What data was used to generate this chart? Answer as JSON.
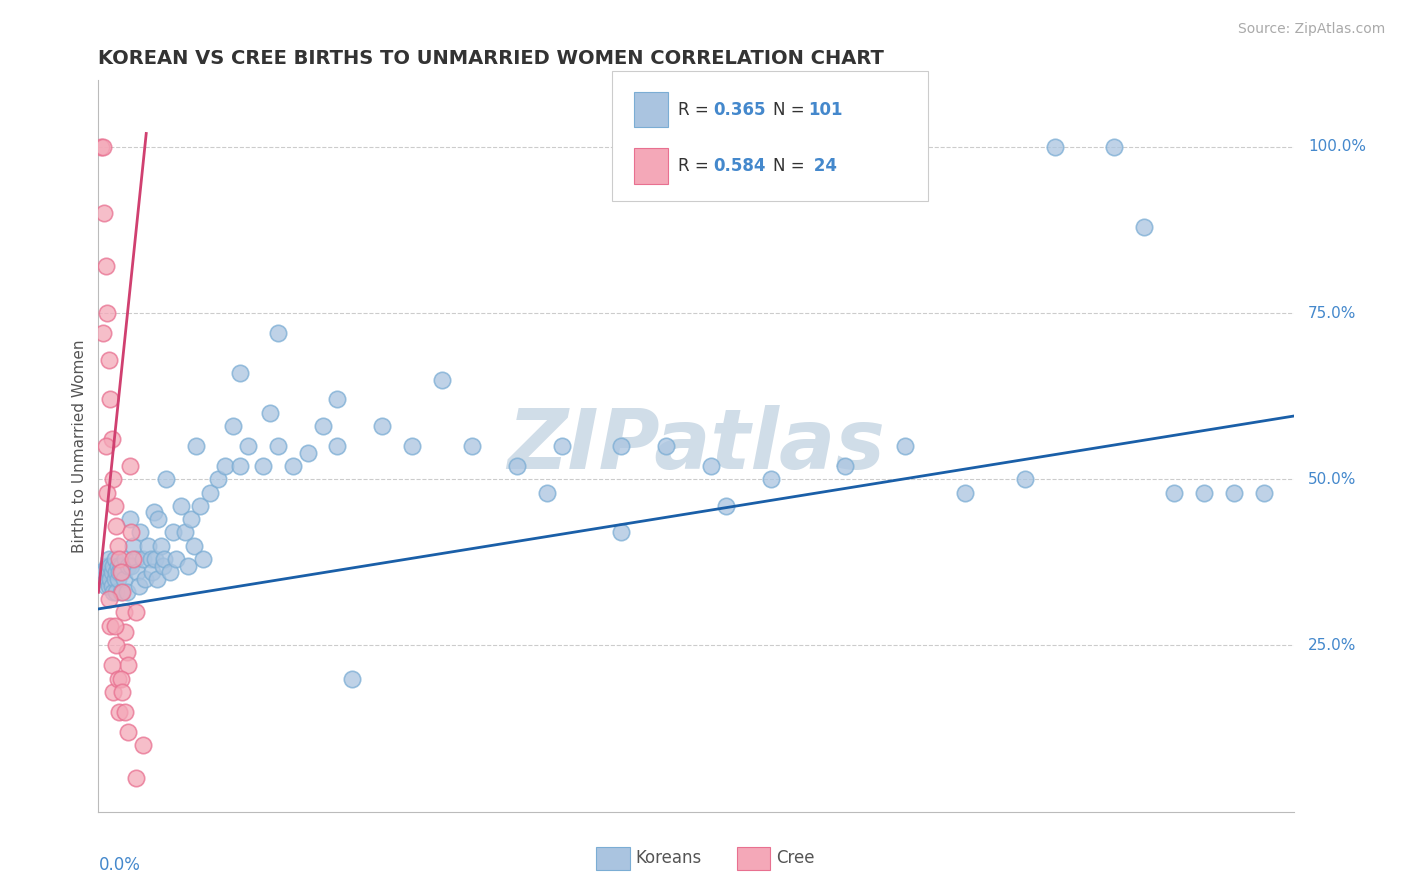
{
  "title": "KOREAN VS CREE BIRTHS TO UNMARRIED WOMEN CORRELATION CHART",
  "source": "Source: ZipAtlas.com",
  "ylabel": "Births to Unmarried Women",
  "xmin": 0.0,
  "xmax": 0.8,
  "ymin": 0.0,
  "ymax": 1.1,
  "ytick_vals": [
    0.25,
    0.5,
    0.75,
    1.0
  ],
  "ytick_labels": [
    "25.0%",
    "50.0%",
    "75.0%",
    "100.0%"
  ],
  "korean_color": "#aac4e0",
  "korean_edge_color": "#7badd4",
  "cree_color": "#f4a8b8",
  "cree_edge_color": "#e87090",
  "korean_line_color": "#1a5fa8",
  "cree_line_color": "#d04070",
  "label_color": "#4488cc",
  "watermark": "ZIPatlas",
  "watermark_color": "#d0dde8",
  "background_color": "#ffffff",
  "title_fontsize": 14,
  "source_fontsize": 10,
  "axis_label_color": "#555555",
  "korean_line_x": [
    0.0,
    0.8
  ],
  "korean_line_y": [
    0.305,
    0.595
  ],
  "cree_line_x": [
    0.0,
    0.032
  ],
  "cree_line_y": [
    0.33,
    1.02
  ],
  "korean_x": [
    0.002,
    0.003,
    0.004,
    0.005,
    0.006,
    0.006,
    0.007,
    0.007,
    0.007,
    0.008,
    0.008,
    0.009,
    0.009,
    0.01,
    0.01,
    0.011,
    0.011,
    0.012,
    0.012,
    0.013,
    0.013,
    0.014,
    0.015,
    0.015,
    0.016,
    0.017,
    0.018,
    0.019,
    0.02,
    0.021,
    0.022,
    0.023,
    0.025,
    0.026,
    0.027,
    0.028,
    0.03,
    0.031,
    0.033,
    0.035,
    0.036,
    0.037,
    0.038,
    0.039,
    0.04,
    0.042,
    0.043,
    0.044,
    0.045,
    0.048,
    0.05,
    0.052,
    0.055,
    0.058,
    0.06,
    0.062,
    0.064,
    0.065,
    0.068,
    0.07,
    0.075,
    0.08,
    0.085,
    0.09,
    0.095,
    0.1,
    0.11,
    0.115,
    0.12,
    0.13,
    0.14,
    0.15,
    0.16,
    0.17,
    0.19,
    0.21,
    0.23,
    0.25,
    0.28,
    0.31,
    0.35,
    0.38,
    0.41,
    0.45,
    0.5,
    0.54,
    0.58,
    0.62,
    0.64,
    0.68,
    0.7,
    0.72,
    0.74,
    0.76,
    0.78,
    0.095,
    0.12,
    0.16,
    0.42,
    0.35,
    0.3
  ],
  "korean_y": [
    0.36,
    0.35,
    0.36,
    0.34,
    0.35,
    0.37,
    0.34,
    0.36,
    0.38,
    0.35,
    0.37,
    0.34,
    0.36,
    0.33,
    0.37,
    0.35,
    0.38,
    0.33,
    0.36,
    0.35,
    0.37,
    0.36,
    0.33,
    0.37,
    0.36,
    0.35,
    0.38,
    0.33,
    0.37,
    0.44,
    0.37,
    0.4,
    0.38,
    0.36,
    0.34,
    0.42,
    0.38,
    0.35,
    0.4,
    0.38,
    0.36,
    0.45,
    0.38,
    0.35,
    0.44,
    0.4,
    0.37,
    0.38,
    0.5,
    0.36,
    0.42,
    0.38,
    0.46,
    0.42,
    0.37,
    0.44,
    0.4,
    0.55,
    0.46,
    0.38,
    0.48,
    0.5,
    0.52,
    0.58,
    0.52,
    0.55,
    0.52,
    0.6,
    0.55,
    0.52,
    0.54,
    0.58,
    0.55,
    0.2,
    0.58,
    0.55,
    0.65,
    0.55,
    0.52,
    0.55,
    0.55,
    0.55,
    0.52,
    0.5,
    0.52,
    0.55,
    0.48,
    0.5,
    1.0,
    1.0,
    0.88,
    0.48,
    0.48,
    0.48,
    0.48,
    0.66,
    0.72,
    0.62,
    0.46,
    0.42,
    0.48
  ],
  "cree_x": [
    0.002,
    0.003,
    0.004,
    0.005,
    0.006,
    0.007,
    0.008,
    0.009,
    0.01,
    0.011,
    0.012,
    0.013,
    0.014,
    0.015,
    0.016,
    0.017,
    0.018,
    0.019,
    0.02,
    0.021,
    0.022,
    0.023,
    0.025,
    0.03
  ],
  "cree_y": [
    1.0,
    1.0,
    0.9,
    0.82,
    0.75,
    0.68,
    0.62,
    0.56,
    0.5,
    0.46,
    0.43,
    0.4,
    0.38,
    0.36,
    0.33,
    0.3,
    0.27,
    0.24,
    0.22,
    0.52,
    0.42,
    0.38,
    0.3,
    0.1
  ],
  "cree_extra_x": [
    0.003,
    0.005,
    0.006,
    0.007,
    0.008,
    0.009,
    0.01,
    0.011,
    0.012,
    0.013,
    0.014,
    0.015,
    0.016,
    0.018,
    0.02,
    0.025
  ],
  "cree_extra_y": [
    0.72,
    0.55,
    0.48,
    0.32,
    0.28,
    0.22,
    0.18,
    0.28,
    0.25,
    0.2,
    0.15,
    0.2,
    0.18,
    0.15,
    0.12,
    0.05
  ]
}
